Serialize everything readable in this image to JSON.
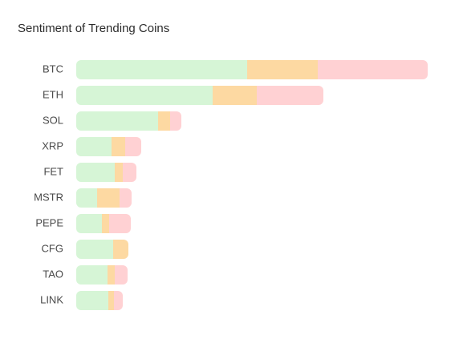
{
  "chart_data": {
    "type": "stacked-bar",
    "orientation": "horizontal",
    "title": "Sentiment of Trending Coins",
    "categories": [
      "BTC",
      "ETH",
      "SOL",
      "XRP",
      "FET",
      "MSTR",
      "PEPE",
      "CFG",
      "TAO",
      "LINK"
    ],
    "series": [
      {
        "color": "#d6f5d6",
        "values": [
          213,
          170,
          102,
          44,
          48,
          26,
          32,
          46,
          39,
          40
        ]
      },
      {
        "color": "#fdd9a2",
        "values": [
          88,
          55,
          15,
          17,
          10,
          28,
          9,
          19,
          9,
          7
        ]
      },
      {
        "color": "#ffd1d3",
        "values": [
          137,
          83,
          14,
          20,
          17,
          15,
          27,
          0,
          16,
          11
        ]
      }
    ]
  }
}
